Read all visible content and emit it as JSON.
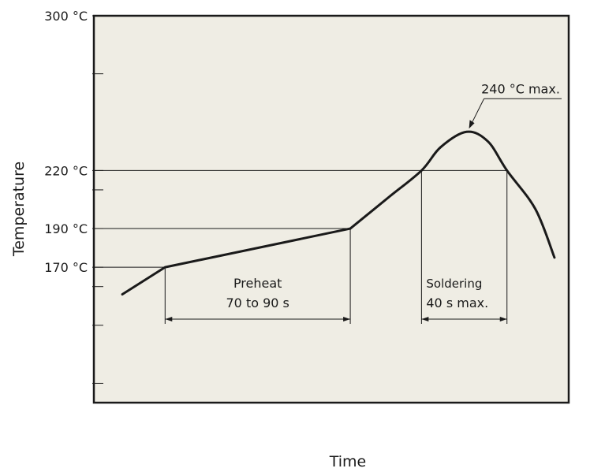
{
  "chart_data": {
    "type": "line",
    "xlabel": "Time",
    "ylabel": "Temperature",
    "ylim": [
      100,
      300
    ],
    "ytick_values": [
      300,
      270,
      220,
      210,
      190,
      170,
      160,
      140,
      110
    ],
    "ytick_labels": [
      {
        "value": 300,
        "label": "300 °C"
      },
      {
        "value": 220,
        "label": "220 °C"
      },
      {
        "value": 190,
        "label": "190 °C"
      },
      {
        "value": 170,
        "label": "170 °C"
      }
    ],
    "reference_lines": [
      220,
      190,
      170
    ],
    "series": [
      {
        "points": [
          {
            "x": 0.06,
            "y": 156
          },
          {
            "x": 0.15,
            "y": 170
          },
          {
            "x": 0.54,
            "y": 190
          },
          {
            "x": 0.62,
            "y": 206
          },
          {
            "x": 0.69,
            "y": 220
          },
          {
            "x": 0.73,
            "y": 232
          },
          {
            "x": 0.785,
            "y": 240
          },
          {
            "x": 0.83,
            "y": 235
          },
          {
            "x": 0.87,
            "y": 220
          },
          {
            "x": 0.93,
            "y": 200
          },
          {
            "x": 0.97,
            "y": 175
          }
        ]
      }
    ],
    "annotations": {
      "peak": {
        "text": "240 °C max.",
        "value": 240
      },
      "preheat": {
        "line1": "Preheat",
        "line2": "70 to 90 s",
        "x_start": 0.15,
        "x_end": 0.54
      },
      "soldering": {
        "line1": "Soldering",
        "line2": "40 s max.",
        "x_start": 0.69,
        "x_end": 0.87
      }
    },
    "colors": {
      "plot_background": "#efede4",
      "line": "#1a1a1a"
    }
  }
}
